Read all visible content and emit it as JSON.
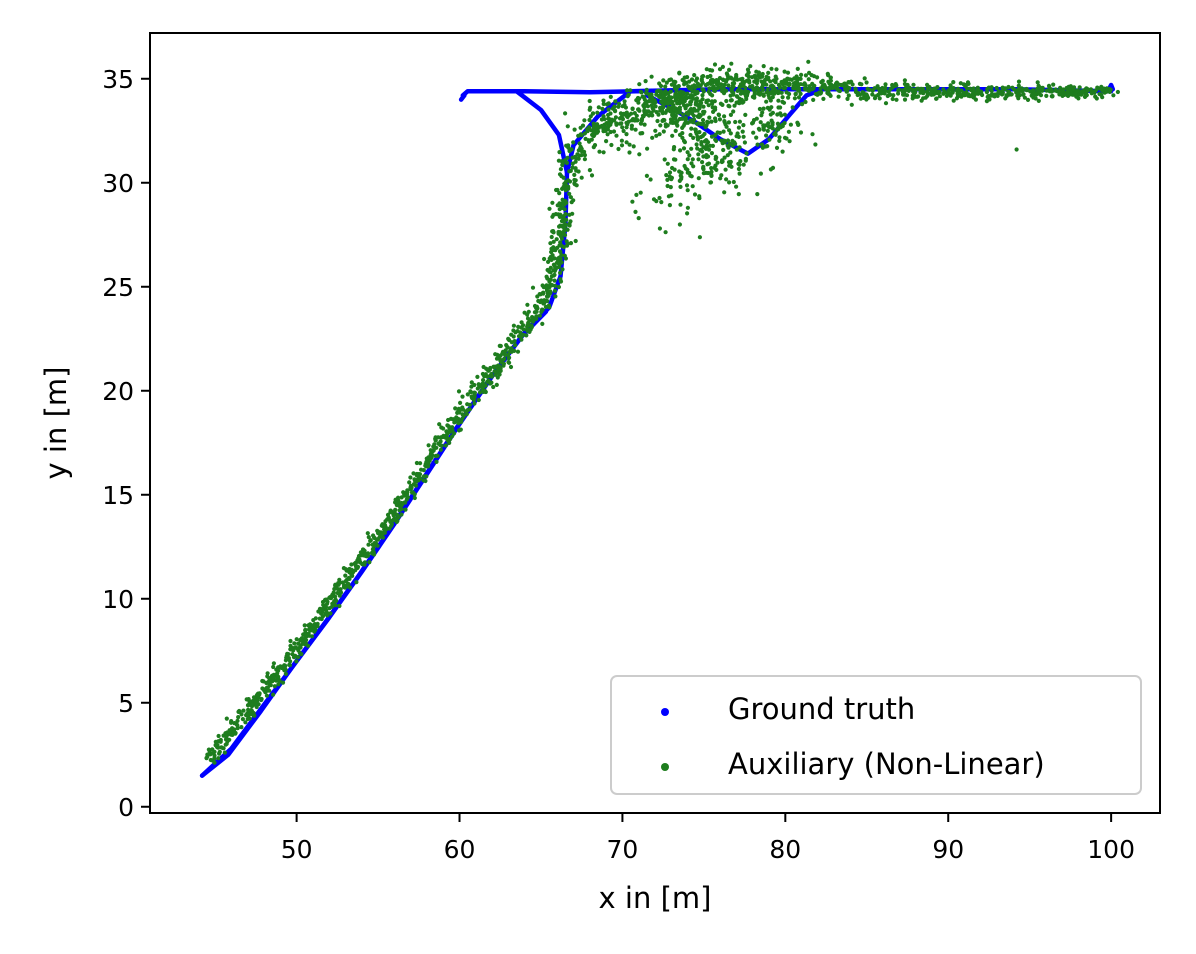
{
  "chart_data": {
    "type": "scatter",
    "title": "",
    "xlabel": "x in [m]",
    "ylabel": "y in [m]",
    "xlim": [
      41,
      103
    ],
    "ylim": [
      -0.3,
      37.2
    ],
    "x_ticks": [
      50,
      60,
      70,
      80,
      90,
      100
    ],
    "y_ticks": [
      0,
      5,
      10,
      15,
      20,
      25,
      30,
      35
    ],
    "grid": false,
    "legend_position": "lower-right",
    "series": [
      {
        "name": "Ground truth",
        "color": "#0000ff",
        "style": "dense-points",
        "paths": [
          [
            [
              44.2,
              1.5
            ],
            [
              46,
              2.8
            ],
            [
              48,
              4.9
            ],
            [
              50,
              7.0
            ],
            [
              52,
              9.1
            ],
            [
              54,
              11.3
            ],
            [
              56,
              13.6
            ],
            [
              58,
              16.0
            ],
            [
              60,
              18.4
            ],
            [
              62,
              20.7
            ],
            [
              64,
              22.8
            ],
            [
              65.5,
              24.0
            ],
            [
              66.2,
              25.5
            ],
            [
              66.5,
              28.0
            ],
            [
              66.6,
              30.5
            ],
            [
              67.0,
              31.8
            ],
            [
              68.5,
              33.2
            ],
            [
              70.5,
              34.4
            ],
            [
              76,
              34.5
            ],
            [
              86,
              34.5
            ],
            [
              94,
              34.5
            ],
            [
              100,
              34.4
            ]
          ],
          [
            [
              44.2,
              1.5
            ],
            [
              45.8,
              2.5
            ],
            [
              47.8,
              4.6
            ],
            [
              49.8,
              6.8
            ],
            [
              51.8,
              8.9
            ],
            [
              53.8,
              11.1
            ],
            [
              55.8,
              13.4
            ],
            [
              57.8,
              15.8
            ],
            [
              59.8,
              18.2
            ],
            [
              61.8,
              20.5
            ],
            [
              63.8,
              22.6
            ],
            [
              65.3,
              23.8
            ]
          ],
          [
            [
              60.2,
              34.2
            ],
            [
              60.5,
              34.4
            ],
            [
              62,
              34.4
            ],
            [
              64,
              34.4
            ],
            [
              68,
              34.35
            ],
            [
              71,
              34.4
            ]
          ],
          [
            [
              60.1,
              34.0
            ],
            [
              60.3,
              34.2
            ]
          ],
          [
            [
              63.5,
              34.4
            ],
            [
              65,
              33.5
            ],
            [
              66.1,
              32.3
            ],
            [
              66.6,
              30.5
            ]
          ],
          [
            [
              71.5,
              34.2
            ],
            [
              73,
              33.6
            ],
            [
              74.5,
              32.9
            ],
            [
              76,
              32.1
            ],
            [
              77.7,
              31.4
            ],
            [
              79,
              32.1
            ],
            [
              80.3,
              33.3
            ],
            [
              81.3,
              34.2
            ],
            [
              82,
              34.4
            ]
          ],
          [
            [
              99.8,
              34.4
            ],
            [
              100,
              34.7
            ],
            [
              100.1,
              34.5
            ]
          ]
        ]
      },
      {
        "name": "Auxiliary (Non-Linear)",
        "color": "#1e7d1e",
        "style": "scatter",
        "count": 2600,
        "seed": 7,
        "band": [
          {
            "x": 44.5,
            "y": 2.2,
            "sx": 0.15,
            "sy": 0.25
          },
          {
            "x": 50,
            "y": 7.6,
            "sx": 0.15,
            "sy": 0.25
          },
          {
            "x": 56,
            "y": 14.1,
            "sx": 0.15,
            "sy": 0.25
          },
          {
            "x": 60,
            "y": 18.9,
            "sx": 0.15,
            "sy": 0.3
          },
          {
            "x": 63,
            "y": 21.9,
            "sx": 0.18,
            "sy": 0.3
          },
          {
            "x": 65.2,
            "y": 24.2,
            "sx": 0.25,
            "sy": 0.3
          },
          {
            "x": 66.2,
            "y": 27.0,
            "sx": 0.3,
            "sy": 0.35
          },
          {
            "x": 66.5,
            "y": 29.5,
            "sx": 0.3,
            "sy": 0.35
          },
          {
            "x": 67.3,
            "y": 31.8,
            "sx": 0.4,
            "sy": 0.35
          },
          {
            "x": 69.5,
            "y": 33.3,
            "sx": 0.6,
            "sy": 0.45
          },
          {
            "x": 72,
            "y": 34.1,
            "sx": 0.7,
            "sy": 0.5
          },
          {
            "x": 75,
            "y": 34.4,
            "sx": 0.8,
            "sy": 0.45
          },
          {
            "x": 80,
            "y": 34.6,
            "sx": 0.8,
            "sy": 0.35
          },
          {
            "x": 86,
            "y": 34.4,
            "sx": 0.8,
            "sy": 0.22
          },
          {
            "x": 92,
            "y": 34.3,
            "sx": 0.8,
            "sy": 0.18
          },
          {
            "x": 100,
            "y": 34.4,
            "sx": 0.2,
            "sy": 0.15
          }
        ],
        "clusters": [
          {
            "x": 75.5,
            "y": 31.5,
            "sx": 1.6,
            "sy": 1.0,
            "n": 170
          },
          {
            "x": 73.5,
            "y": 29.8,
            "sx": 1.3,
            "sy": 1.0,
            "n": 50
          },
          {
            "x": 79.0,
            "y": 32.6,
            "sx": 1.0,
            "sy": 0.6,
            "n": 70
          },
          {
            "x": 73.5,
            "y": 33.6,
            "sx": 1.6,
            "sy": 0.6,
            "n": 220
          },
          {
            "x": 78.0,
            "y": 34.9,
            "sx": 2.2,
            "sy": 0.35,
            "n": 150
          },
          {
            "x": 69.5,
            "y": 32.6,
            "sx": 0.9,
            "sy": 0.6,
            "n": 60
          }
        ],
        "outliers": [
          [
            94.2,
            31.6
          ],
          [
            70.8,
            28.6
          ],
          [
            72.3,
            27.8
          ],
          [
            71.0,
            28.3
          ]
        ]
      }
    ]
  }
}
